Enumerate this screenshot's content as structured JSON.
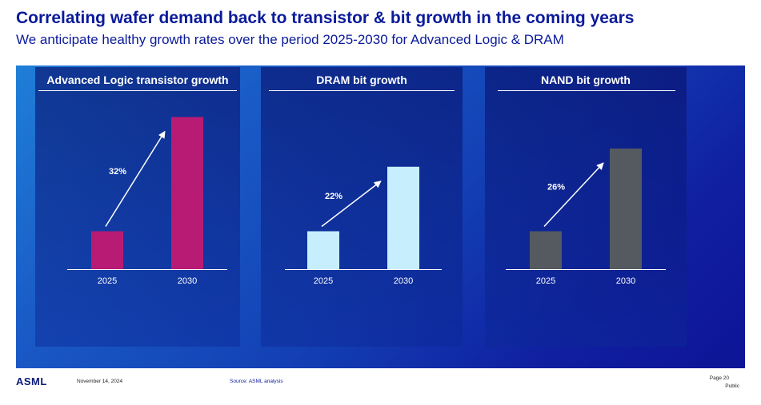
{
  "header": {
    "title": "Correlating wafer demand back to transistor & bit growth in the coming years",
    "subtitle": "We anticipate healthy growth rates over the period 2025-2030 for Advanced Logic & DRAM"
  },
  "colors": {
    "title": "#0a1a9a",
    "logic_bar": "#b81b74",
    "dram_bar": "#c7eefc",
    "nand_bar": "#555a60"
  },
  "chart_data": [
    {
      "type": "bar",
      "title": "Advanced Logic transistor growth",
      "categories": [
        "2025",
        "2030"
      ],
      "values": [
        1,
        4.01
      ],
      "annotation": "32%",
      "color": "#b81b74"
    },
    {
      "type": "bar",
      "title": "DRAM bit growth",
      "categories": [
        "2025",
        "2030"
      ],
      "values": [
        1,
        2.7
      ],
      "annotation": "22%",
      "color": "#c7eefc"
    },
    {
      "type": "bar",
      "title": "NAND bit growth",
      "categories": [
        "2025",
        "2030"
      ],
      "values": [
        1,
        3.18
      ],
      "annotation": "26%",
      "color": "#555a60"
    }
  ],
  "footer": {
    "logo": "ASML",
    "date": "November 14, 2024",
    "source": "Source: ASML analysis",
    "page": "Page 20",
    "classification": "Public"
  }
}
